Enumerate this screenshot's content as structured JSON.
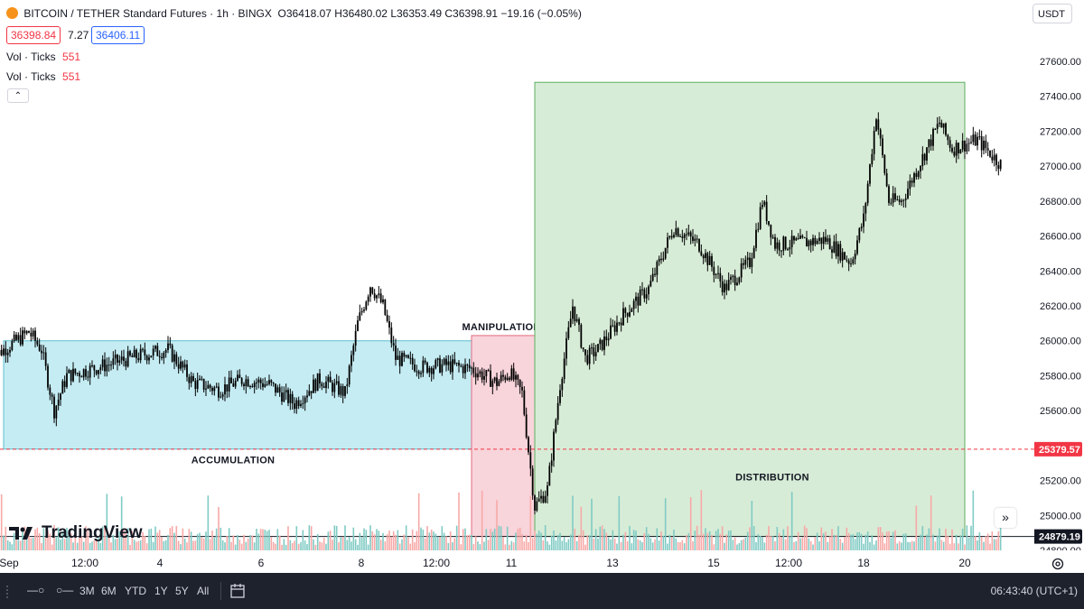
{
  "header": {
    "symbol": "BITCOIN / TETHER Standard Futures · 1h · BINGX",
    "ohlc": "O36418.07 H36480.02 L36353.49 C36398.91 −19.16 (−0.05%)",
    "bid": "36398.84",
    "spread": "7.27",
    "ask": "36406.11",
    "indicators": [
      {
        "label": "Vol · Ticks",
        "value": "551"
      },
      {
        "label": "Vol · Ticks",
        "value": "551"
      }
    ],
    "collapse_icon": "chevron-up-icon"
  },
  "currency": "USDT",
  "logo": "TradingView",
  "price_labels": {
    "dashed_line": "25379.57",
    "solid_line": "24879.19"
  },
  "time_axis": {
    "ticks": [
      "Sep",
      "12:00",
      "4",
      "6",
      "8",
      "12:00",
      "11",
      "13",
      "15",
      "12:00",
      "18",
      "20"
    ]
  },
  "bottom_bar": {
    "ranges": [
      "3M",
      "6M",
      "YTD",
      "1Y",
      "5Y",
      "All"
    ],
    "clock": "06:43:40 (UTC+1)"
  },
  "colors": {
    "accumulation": "#c5ecf3",
    "manipulation": "#f8d4db",
    "distribution": "#d7ecd7",
    "candle": "#000000",
    "volume_up": "#80cbc4",
    "volume_down": "#f7a9a7",
    "price_line": "#f23645"
  },
  "chart_data": {
    "type": "candlestick",
    "title": "BITCOIN / TETHER Standard Futures · 1h · BINGX",
    "y_axis": {
      "min": 24800,
      "max": 27600,
      "ticks": [
        24800,
        25000,
        25200,
        25400,
        25600,
        25800,
        26000,
        26200,
        26400,
        26600,
        26800,
        27000,
        27200,
        27400,
        27600
      ]
    },
    "x_ticks": [
      "Sep",
      "12:00",
      "4",
      "6",
      "8",
      "12:00",
      "11",
      "13",
      "15",
      "12:00",
      "18",
      "20"
    ],
    "price_path": [
      {
        "x": "Sep 1",
        "y": 25900
      },
      {
        "x": "Sep 1 18:00",
        "y": 26050
      },
      {
        "x": "Sep 2",
        "y": 25950
      },
      {
        "x": "Sep 2 06:00",
        "y": 25600
      },
      {
        "x": "Sep 2 12:00",
        "y": 25800
      },
      {
        "x": "Sep 3",
        "y": 25840
      },
      {
        "x": "Sep 4",
        "y": 25920
      },
      {
        "x": "Sep 4 12:00",
        "y": 25950
      },
      {
        "x": "Sep 5",
        "y": 25760
      },
      {
        "x": "Sep 5 12:00",
        "y": 25720
      },
      {
        "x": "Sep 6",
        "y": 25780
      },
      {
        "x": "Sep 6 12:00",
        "y": 25750
      },
      {
        "x": "Sep 7",
        "y": 25640
      },
      {
        "x": "Sep 7 12:00",
        "y": 25780
      },
      {
        "x": "Sep 8",
        "y": 25700
      },
      {
        "x": "Sep 8 06:00",
        "y": 26100
      },
      {
        "x": "Sep 8 12:00",
        "y": 26320
      },
      {
        "x": "Sep 8 18:00",
        "y": 26200
      },
      {
        "x": "Sep 9",
        "y": 25900
      },
      {
        "x": "Sep 9 12:00",
        "y": 25850
      },
      {
        "x": "Sep 10",
        "y": 25860
      },
      {
        "x": "Sep 10 12:00",
        "y": 25840
      },
      {
        "x": "Sep 11",
        "y": 25760
      },
      {
        "x": "Sep 11 06:00",
        "y": 25820
      },
      {
        "x": "Sep 11 12:00",
        "y": 25700
      },
      {
        "x": "Sep 11 18:00",
        "y": 25050
      },
      {
        "x": "Sep 12",
        "y": 25150
      },
      {
        "x": "Sep 12 06:00",
        "y": 25750
      },
      {
        "x": "Sep 12 12:00",
        "y": 26200
      },
      {
        "x": "Sep 12 18:00",
        "y": 25900
      },
      {
        "x": "Sep 13",
        "y": 25950
      },
      {
        "x": "Sep 13 12:00",
        "y": 26150
      },
      {
        "x": "Sep 14",
        "y": 26300
      },
      {
        "x": "Sep 14 12:00",
        "y": 26650
      },
      {
        "x": "Sep 15",
        "y": 26550
      },
      {
        "x": "Sep 15 12:00",
        "y": 26300
      },
      {
        "x": "Sep 16",
        "y": 26450
      },
      {
        "x": "Sep 16 06:00",
        "y": 26800
      },
      {
        "x": "Sep 16 12:00",
        "y": 26550
      },
      {
        "x": "Sep 17",
        "y": 26560
      },
      {
        "x": "Sep 17 12:00",
        "y": 26580
      },
      {
        "x": "Sep 18",
        "y": 26450
      },
      {
        "x": "Sep 18 06:00",
        "y": 26700
      },
      {
        "x": "Sep 18 12:00",
        "y": 27300
      },
      {
        "x": "Sep 18 18:00",
        "y": 26800
      },
      {
        "x": "Sep 19",
        "y": 26800
      },
      {
        "x": "Sep 19 12:00",
        "y": 27100
      },
      {
        "x": "Sep 19 18:00",
        "y": 27250
      },
      {
        "x": "Sep 20",
        "y": 27100
      },
      {
        "x": "Sep 20 12:00",
        "y": 27150
      },
      {
        "x": "Sep 21",
        "y": 27000
      }
    ],
    "zones": [
      {
        "label": "ACCUMULATION",
        "from": "Sep 1 06:00",
        "to": "Sep 10 12:00",
        "top": 26000,
        "bottom": 25380
      },
      {
        "label": "MANIPULATION",
        "from": "Sep 10 12:00",
        "to": "Sep 11 18:00",
        "top": 26030,
        "bottom": 24880
      },
      {
        "label": "DISTRIBUTION",
        "from": "Sep 11 18:00",
        "to": "Sep 20 06:00",
        "top": 27480,
        "bottom": 24880
      }
    ],
    "horizontal_lines": [
      {
        "value": 25379.57,
        "style": "dashed"
      },
      {
        "value": 24879.19,
        "style": "solid"
      }
    ],
    "grid": false,
    "legend": "top-left"
  }
}
